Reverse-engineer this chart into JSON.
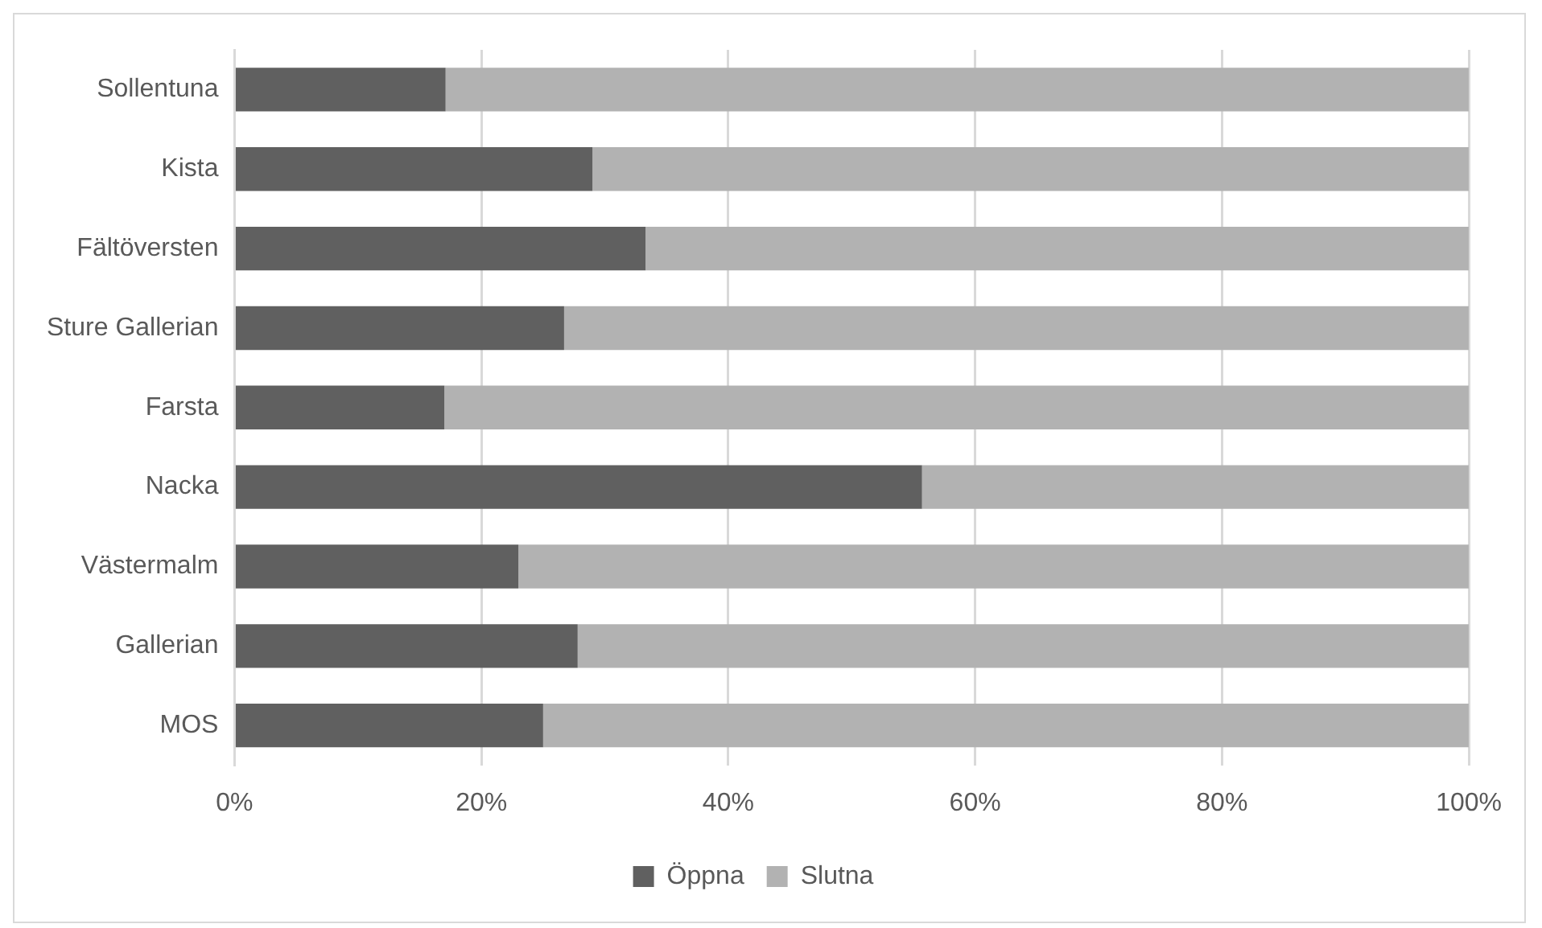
{
  "chart_data": {
    "type": "bar",
    "orientation": "horizontal",
    "stacked": true,
    "categories": [
      "Sollentuna",
      "Kista",
      "Fältöversten",
      "Sture Gallerian",
      "Farsta",
      "Nacka",
      "Västermalm",
      "Gallerian",
      "MOS"
    ],
    "series": [
      {
        "name": "Öppna",
        "color": "#606060",
        "values": [
          17.1,
          29.0,
          33.3,
          26.7,
          17.0,
          55.7,
          23.0,
          27.8,
          25.0
        ]
      },
      {
        "name": "Slutna",
        "color": "#b2b2b2",
        "values": [
          82.9,
          71.0,
          66.7,
          73.3,
          83.0,
          44.3,
          77.0,
          72.2,
          75.0
        ]
      }
    ],
    "xlim": [
      0,
      100
    ],
    "xticks": [
      {
        "value": 0,
        "label": "0%"
      },
      {
        "value": 20,
        "label": "20%"
      },
      {
        "value": 40,
        "label": "40%"
      },
      {
        "value": 60,
        "label": "60%"
      },
      {
        "value": 80,
        "label": "80%"
      },
      {
        "value": 100,
        "label": "100%"
      }
    ],
    "grid": "x",
    "legend": "bottom"
  }
}
